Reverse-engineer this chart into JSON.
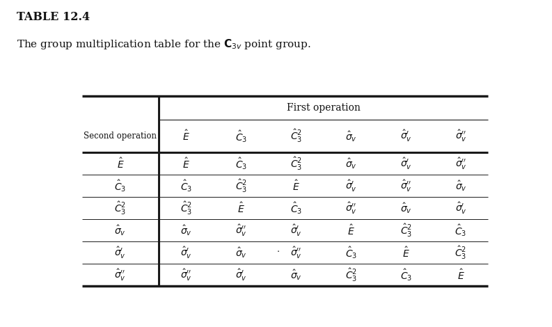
{
  "title_bold": "TABLE 12.4",
  "subtitle": "The group multiplication table for the $\\mathbf{C}_{3v}$ point group.",
  "first_op_label": "First operation",
  "second_op_label": "Second operation",
  "col_headers": [
    "$\\hat{E}$",
    "$\\hat{C}_3$",
    "$\\hat{C}_3^2$",
    "$\\hat{\\sigma}_v$",
    "$\\hat{\\sigma}_v'$",
    "$\\hat{\\sigma}_v''$"
  ],
  "row_headers": [
    "$\\hat{E}$",
    "$\\hat{C}_3$",
    "$\\hat{C}_3^2$",
    "$\\hat{\\sigma}_v$",
    "$\\hat{\\sigma}_v'$",
    "$\\hat{\\sigma}_v''$"
  ],
  "table_data": [
    [
      "$\\hat{E}$",
      "$\\hat{C}_3$",
      "$\\hat{C}_3^2$",
      "$\\hat{\\sigma}_v$",
      "$\\hat{\\sigma}_v'$",
      "$\\hat{\\sigma}_v''$"
    ],
    [
      "$\\hat{C}_3$",
      "$\\hat{C}_3^2$",
      "$\\hat{E}$",
      "$\\hat{\\sigma}_v'$",
      "$\\hat{\\sigma}_v''$",
      "$\\hat{\\sigma}_v$"
    ],
    [
      "$\\hat{C}_3^2$",
      "$\\hat{E}$",
      "$\\hat{C}_3$",
      "$\\hat{\\sigma}_v''$",
      "$\\hat{\\sigma}_v$",
      "$\\hat{\\sigma}_v'$"
    ],
    [
      "$\\hat{\\sigma}_v$",
      "$\\hat{\\sigma}_v''$",
      "$\\hat{\\sigma}_v'$",
      "$\\hat{E}$",
      "$\\hat{C}_3^2$",
      "$\\hat{C}_3$"
    ],
    [
      "$\\hat{\\sigma}_v'$",
      "$\\hat{\\sigma}_v$",
      "$\\hat{\\sigma}_v''$",
      "$\\hat{C}_3$",
      "$\\hat{E}$",
      "$\\hat{C}_3^2$"
    ],
    [
      "$\\hat{\\sigma}_v''$",
      "$\\hat{\\sigma}_v'$",
      "$\\hat{\\sigma}_v$",
      "$\\hat{C}_3^2$",
      "$\\hat{C}_3$",
      "$\\hat{E}$"
    ]
  ],
  "dot_row": 4,
  "dot_col": 2,
  "bg_color": "#ffffff",
  "text_color": "#111111",
  "line_color": "#1a1a1a",
  "fontsize_title": 11.5,
  "fontsize_subtitle": 11,
  "fontsize_header": 10,
  "fontsize_table": 10
}
